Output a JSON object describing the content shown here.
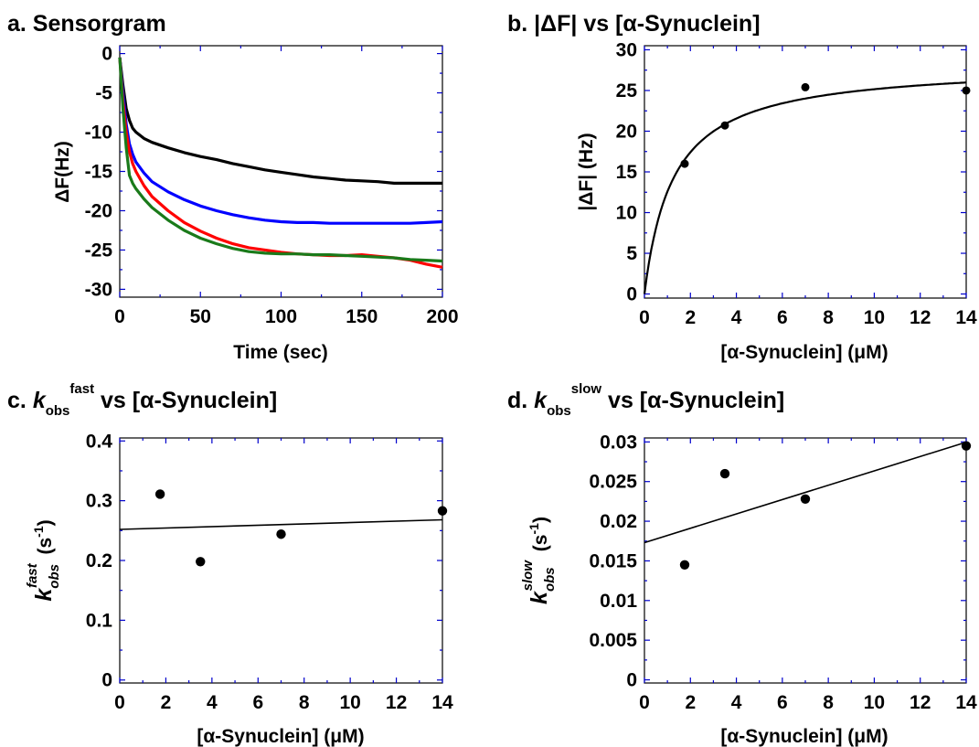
{
  "chart_data": [
    {
      "panel": "a",
      "type": "line",
      "title": "a. Sensorgram",
      "xlabel": "Time (sec)",
      "ylabel": "ΔF(Hz)",
      "xlim": [
        0,
        200
      ],
      "ylim": [
        -31,
        1
      ],
      "xticks": [
        0,
        50,
        100,
        150,
        200
      ],
      "yticks": [
        0,
        -5,
        -10,
        -15,
        -20,
        -25,
        -30
      ],
      "series": [
        {
          "color": "#000000",
          "x": [
            0,
            2,
            4,
            6,
            8,
            10,
            15,
            20,
            30,
            40,
            50,
            60,
            70,
            80,
            90,
            100,
            110,
            120,
            130,
            140,
            150,
            160,
            170,
            180,
            190,
            200
          ],
          "y": [
            -0.5,
            -4,
            -7,
            -8.5,
            -9.5,
            -10,
            -10.8,
            -11.3,
            -12,
            -12.6,
            -13.1,
            -13.5,
            -14,
            -14.4,
            -14.8,
            -15.1,
            -15.4,
            -15.7,
            -15.9,
            -16.1,
            -16.2,
            -16.3,
            -16.5,
            -16.5,
            -16.5,
            -16.5
          ]
        },
        {
          "color": "#0000ff",
          "x": [
            0,
            2,
            4,
            6,
            8,
            10,
            15,
            20,
            30,
            40,
            50,
            60,
            70,
            80,
            90,
            100,
            110,
            120,
            130,
            140,
            150,
            160,
            170,
            180,
            190,
            200
          ],
          "y": [
            -0.5,
            -5,
            -9,
            -11.5,
            -12.8,
            -13.8,
            -15.2,
            -16.3,
            -17.6,
            -18.6,
            -19.4,
            -20,
            -20.5,
            -20.9,
            -21.2,
            -21.4,
            -21.5,
            -21.5,
            -21.6,
            -21.6,
            -21.6,
            -21.6,
            -21.6,
            -21.6,
            -21.5,
            -21.4
          ]
        },
        {
          "color": "#ff0000",
          "x": [
            0,
            2,
            4,
            6,
            8,
            10,
            15,
            20,
            30,
            40,
            50,
            60,
            70,
            80,
            90,
            100,
            110,
            120,
            130,
            140,
            150,
            160,
            170,
            180,
            190,
            200
          ],
          "y": [
            -0.5,
            -6,
            -10,
            -12.5,
            -14,
            -15,
            -16.8,
            -18.2,
            -20,
            -21.5,
            -22.6,
            -23.5,
            -24.2,
            -24.7,
            -25,
            -25.3,
            -25.5,
            -25.6,
            -25.7,
            -25.7,
            -25.6,
            -25.8,
            -26,
            -26.3,
            -26.8,
            -27.2
          ]
        },
        {
          "color": "#1a7a1a",
          "x": [
            0,
            2,
            4,
            6,
            8,
            10,
            15,
            20,
            30,
            40,
            50,
            60,
            70,
            80,
            90,
            100,
            110,
            120,
            130,
            140,
            150,
            160,
            170,
            180,
            190,
            200
          ],
          "y": [
            -0.5,
            -7,
            -12,
            -15.5,
            -16.5,
            -17.2,
            -18.5,
            -19.6,
            -21.2,
            -22.5,
            -23.5,
            -24.2,
            -24.8,
            -25.2,
            -25.4,
            -25.5,
            -25.5,
            -25.6,
            -25.6,
            -25.7,
            -25.8,
            -25.9,
            -26,
            -26.2,
            -26.3,
            -26.4
          ]
        }
      ]
    },
    {
      "panel": "b",
      "type": "scatter",
      "title": "b. |ΔF| vs [α-Synuclein]",
      "xlabel": "[α-Synuclein] (μM)",
      "ylabel": "|ΔF| (Hz)",
      "xlim": [
        0,
        14
      ],
      "ylim": [
        -0.5,
        30.5
      ],
      "xticks": [
        0,
        2,
        4,
        6,
        8,
        10,
        12,
        14
      ],
      "yticks": [
        0,
        5,
        10,
        15,
        20,
        25,
        30
      ],
      "points": {
        "x": [
          1.75,
          3.5,
          7,
          14
        ],
        "y": [
          16,
          20.7,
          25.4,
          25
        ]
      },
      "fit": {
        "type": "hyperbolic",
        "Bmax": 28.3,
        "Kd": 1.25
      }
    },
    {
      "panel": "c",
      "type": "scatter",
      "title_prefix": "c.",
      "title_k": "k",
      "title_sub": "obs",
      "title_sup": "fast",
      "title_rest": "vs  [α-Synuclein]",
      "ylabel_k": "k",
      "ylabel_sub": "obs",
      "ylabel_sup": "fast",
      "ylabel_unit": "(s",
      "ylabel_exp": "-1",
      "ylabel_close": ")",
      "xlabel": "[α-Synuclein] (μM)",
      "xlim": [
        0,
        14
      ],
      "ylim": [
        -0.005,
        0.405
      ],
      "xticks": [
        0,
        2,
        4,
        6,
        8,
        10,
        12,
        14
      ],
      "yticks": [
        0,
        0.1,
        0.2,
        0.3,
        0.4
      ],
      "ytick_labels": [
        "0",
        "0.1",
        "0.2",
        "0.3",
        "0.4"
      ],
      "points": {
        "x": [
          1.75,
          3.5,
          7,
          14
        ],
        "y": [
          0.311,
          0.198,
          0.244,
          0.283
        ]
      },
      "fit": {
        "type": "linear",
        "slope": 0.00115,
        "intercept": 0.252
      }
    },
    {
      "panel": "d",
      "type": "scatter",
      "title_prefix": "d.",
      "title_k": "k",
      "title_sub": "obs",
      "title_sup": "slow",
      "title_rest": "vs  [α-Synuclein]",
      "ylabel_k": "k",
      "ylabel_sub": "obs",
      "ylabel_sup": "slow",
      "ylabel_unit": "(s",
      "ylabel_exp": "-1",
      "ylabel_close": ")",
      "xlabel": "[α-Synuclein] (μM)",
      "xlim": [
        0,
        14
      ],
      "ylim": [
        -0.0004,
        0.0305
      ],
      "xticks": [
        0,
        2,
        4,
        6,
        8,
        10,
        12,
        14
      ],
      "yticks": [
        0,
        0.005,
        0.01,
        0.015,
        0.02,
        0.025,
        0.03
      ],
      "ytick_labels": [
        "0",
        "0.005",
        "0.01",
        "0.015",
        "0.02",
        "0.025",
        "0.03"
      ],
      "points": {
        "x": [
          1.75,
          3.5,
          7,
          14
        ],
        "y": [
          0.0145,
          0.026,
          0.0228,
          0.0295
        ]
      },
      "fit": {
        "type": "linear",
        "slope": 0.000905,
        "intercept": 0.0173
      }
    }
  ]
}
